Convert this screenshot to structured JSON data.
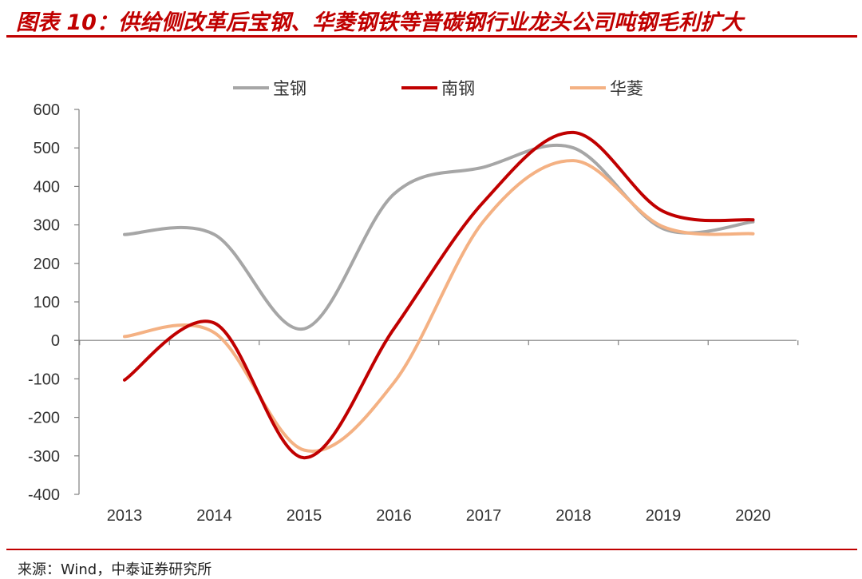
{
  "header": {
    "title": "图表 10：供给侧改革后宝钢、华菱钢铁等普碳钢行业龙头公司吨钢毛利扩大"
  },
  "footer": {
    "source": "来源：Wind，中泰证券研究所"
  },
  "colors": {
    "accent": "#c00000",
    "axis": "#808080",
    "tick_text": "#333333"
  },
  "chart_data": {
    "type": "line",
    "categories": [
      "2013",
      "2014",
      "2015",
      "2016",
      "2017",
      "2018",
      "2019",
      "2020"
    ],
    "x": [
      2013,
      2014,
      2015,
      2016,
      2017,
      2018,
      2019,
      2020
    ],
    "ylim": [
      -400,
      600
    ],
    "yticks": [
      600,
      500,
      400,
      300,
      200,
      100,
      0,
      -100,
      -200,
      -300,
      -400
    ],
    "xlabel": "",
    "ylabel": "",
    "grid": false,
    "legend_position": "top",
    "series": [
      {
        "name": "宝钢",
        "color": "#a6a6a6",
        "values": [
          275,
          275,
          30,
          380,
          450,
          500,
          290,
          308
        ]
      },
      {
        "name": "南钢",
        "color": "#c00000",
        "values": [
          -103,
          45,
          -305,
          30,
          360,
          540,
          335,
          313
        ]
      },
      {
        "name": "华菱",
        "color": "#f4b183",
        "values": [
          10,
          20,
          -285,
          -110,
          310,
          467,
          295,
          277
        ]
      }
    ]
  }
}
